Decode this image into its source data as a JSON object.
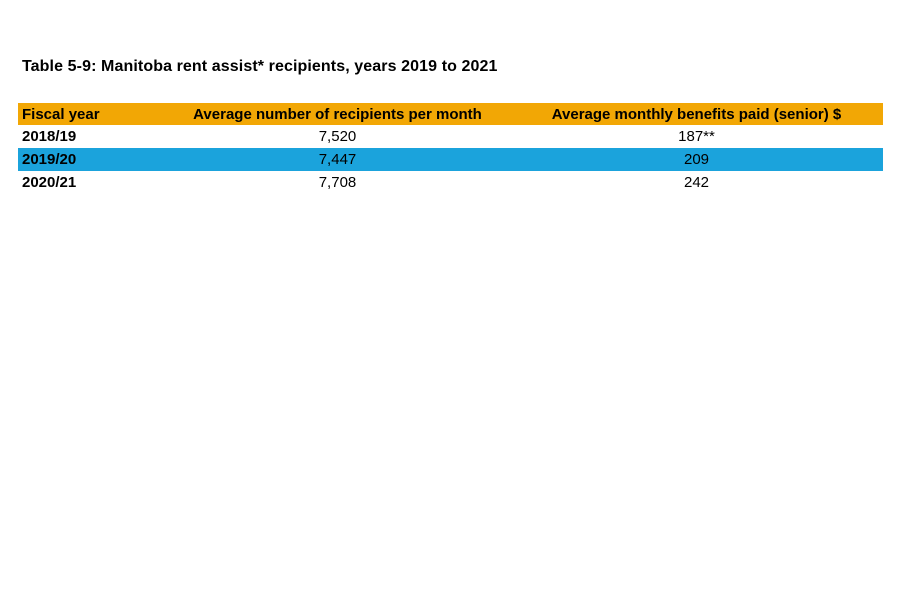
{
  "title": "Table 5-9: Manitoba rent assist* recipients, years 2019 to 2021",
  "table": {
    "columns": [
      "Fiscal year",
      "Average number of recipients per month",
      "Average monthly benefits paid (senior) $"
    ],
    "rows": [
      {
        "fiscal_year": "2018/19",
        "avg_recipients_per_month": "7,520",
        "avg_monthly_benefits_senior": "187**",
        "highlighted": false
      },
      {
        "fiscal_year": "2019/20",
        "avg_recipients_per_month": "7,447",
        "avg_monthly_benefits_senior": "209",
        "highlighted": true
      },
      {
        "fiscal_year": "2020/21",
        "avg_recipients_per_month": "7,708",
        "avg_monthly_benefits_senior": "242",
        "highlighted": false
      }
    ],
    "colors": {
      "header_background": "#F2A705",
      "highlight_row_background": "#1BA3DC",
      "text": "#000000",
      "page_background": "#FFFFFF"
    }
  }
}
